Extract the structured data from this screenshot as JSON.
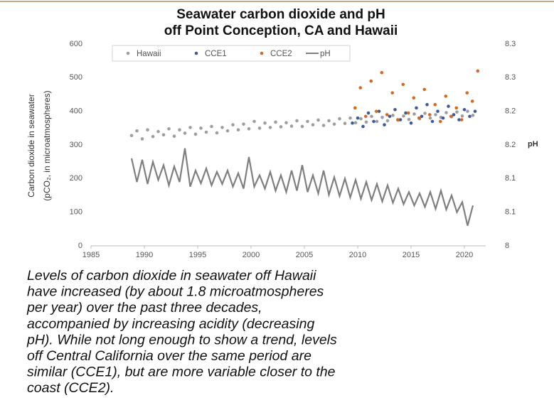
{
  "chart_data": {
    "type": "scatter",
    "title": [
      "Seawater carbon dioxide and pH",
      "off Point Conception, CA and Hawaii"
    ],
    "ylabel": [
      "Carbon dioxide in seawater",
      "(pCO₂, in microatmospheres)"
    ],
    "y2label": "pH",
    "xlim": [
      1985,
      2022
    ],
    "xticks": [
      1985,
      1990,
      1995,
      2000,
      2005,
      2010,
      2015,
      2020
    ],
    "ylim": [
      0,
      600
    ],
    "yticks": [
      0,
      100,
      200,
      300,
      400,
      500,
      600
    ],
    "y2lim": [
      8.0,
      8.3
    ],
    "y2ticks": [
      8.0,
      {
        "value": 8.05,
        "label": "8.1"
      },
      8.1,
      {
        "value": 8.15,
        "label": "8.2"
      },
      8.2,
      {
        "value": 8.25,
        "label": "8.3"
      },
      8.3
    ],
    "grid": false,
    "legend": "top",
    "series": [
      {
        "name": "Hawaii",
        "type": "scatter",
        "color": "#9e9e9e",
        "x": [
          1988.8,
          1989.3,
          1989.8,
          1990.3,
          1990.8,
          1991.3,
          1991.8,
          1992.3,
          1992.8,
          1993.3,
          1993.8,
          1994.3,
          1994.8,
          1995.3,
          1995.8,
          1996.3,
          1996.8,
          1997.3,
          1997.8,
          1998.3,
          1998.8,
          1999.3,
          1999.8,
          2000.3,
          2000.8,
          2001.3,
          2001.8,
          2002.3,
          2002.8,
          2003.3,
          2003.8,
          2004.3,
          2004.8,
          2005.3,
          2005.8,
          2006.3,
          2006.8,
          2007.3,
          2007.8,
          2008.3,
          2008.8,
          2009.3,
          2009.8,
          2010.3,
          2010.8,
          2011.3,
          2011.8,
          2012.3,
          2012.8,
          2013.3,
          2013.8,
          2014.3,
          2014.8,
          2015.3,
          2015.8,
          2016.3,
          2016.8,
          2017.3,
          2017.8,
          2018.3,
          2018.8,
          2019.3,
          2019.8,
          2020.3,
          2020.8
        ],
        "values": [
          328,
          342,
          318,
          345,
          325,
          340,
          330,
          348,
          326,
          345,
          335,
          352,
          332,
          350,
          338,
          355,
          336,
          352,
          342,
          360,
          345,
          362,
          348,
          370,
          350,
          365,
          352,
          368,
          354,
          366,
          356,
          372,
          355,
          370,
          360,
          374,
          358,
          372,
          362,
          378,
          364,
          380,
          366,
          378,
          368,
          385,
          370,
          382,
          372,
          388,
          374,
          386,
          376,
          392,
          378,
          394,
          380,
          390,
          382,
          396,
          384,
          398,
          386,
          400,
          388
        ]
      },
      {
        "name": "CCE1",
        "type": "scatter",
        "color": "#3b5b9e",
        "x": [
          2009.5,
          2010,
          2010.5,
          2011,
          2011.5,
          2012,
          2012.5,
          2013,
          2013.5,
          2014,
          2014.5,
          2015,
          2015.5,
          2016,
          2016.5,
          2017,
          2017.5,
          2018,
          2018.5,
          2019,
          2019.5,
          2020,
          2020.5,
          2021
        ],
        "values": [
          365,
          380,
          355,
          395,
          370,
          400,
          360,
          385,
          405,
          375,
          395,
          365,
          410,
          385,
          420,
          370,
          400,
          380,
          415,
          390,
          375,
          405,
          385,
          400
        ]
      },
      {
        "name": "CCE2",
        "type": "scatter",
        "color": "#d4691f",
        "x": [
          2009.75,
          2010.25,
          2010.75,
          2011.25,
          2011.75,
          2012.25,
          2012.75,
          2013.25,
          2013.75,
          2014.25,
          2014.75,
          2015.25,
          2015.75,
          2016.25,
          2016.75,
          2017.25,
          2017.75,
          2018.25,
          2018.75,
          2019.25,
          2019.75,
          2020.25,
          2020.75,
          2021.25
        ],
        "values": [
          410,
          470,
          385,
          490,
          400,
          515,
          390,
          455,
          375,
          480,
          395,
          440,
          380,
          465,
          390,
          420,
          370,
          445,
          385,
          410,
          375,
          455,
          430,
          520
        ]
      },
      {
        "name": "pH",
        "type": "line",
        "axis": "y2",
        "color": "#7f7f7f",
        "x": [
          1988.8,
          1989.3,
          1989.8,
          1990.3,
          1990.8,
          1991.3,
          1991.8,
          1992.3,
          1992.8,
          1993.3,
          1993.8,
          1994.3,
          1994.8,
          1995.3,
          1995.8,
          1996.3,
          1996.8,
          1997.3,
          1997.8,
          1998.3,
          1998.8,
          1999.3,
          1999.8,
          2000.3,
          2000.8,
          2001.3,
          2001.8,
          2002.3,
          2002.8,
          2003.3,
          2003.8,
          2004.3,
          2004.8,
          2005.3,
          2005.8,
          2006.3,
          2006.8,
          2007.3,
          2007.8,
          2008.3,
          2008.8,
          2009.3,
          2009.8,
          2010.3,
          2010.8,
          2011.3,
          2011.8,
          2012.3,
          2012.8,
          2013.3,
          2013.8,
          2014.3,
          2014.8,
          2015.3,
          2015.8,
          2016.3,
          2016.8,
          2017.3,
          2017.8,
          2018.3,
          2018.8,
          2019.3,
          2019.8,
          2020.3,
          2020.8
        ],
        "values": [
          8.13,
          8.095,
          8.128,
          8.092,
          8.125,
          8.098,
          8.12,
          8.09,
          8.118,
          8.095,
          8.145,
          8.088,
          8.112,
          8.093,
          8.115,
          8.09,
          8.11,
          8.092,
          8.112,
          8.088,
          8.108,
          8.085,
          8.132,
          8.088,
          8.105,
          8.085,
          8.11,
          8.082,
          8.105,
          8.08,
          8.112,
          8.082,
          8.12,
          8.08,
          8.105,
          8.078,
          8.112,
          8.076,
          8.102,
          8.074,
          8.1,
          8.072,
          8.098,
          8.07,
          8.095,
          8.068,
          8.092,
          8.066,
          8.09,
          8.064,
          8.085,
          8.062,
          8.08,
          8.06,
          8.078,
          8.058,
          8.08,
          8.055,
          8.082,
          8.054,
          8.075,
          8.05,
          8.065,
          8.03,
          8.06
        ]
      }
    ]
  },
  "caption": [
    "Levels of carbon dioxide in seawater off Hawaii",
    "have increased (by about 1.8 microatmospheres",
    "per year) over the past three decades,",
    "accompanied by increasing acidity (decreasing",
    "pH). While not long enough to show a trend, levels",
    "off Central California over the same period are",
    "similar (CCE1), but are more variable closer to the",
    "coast (CCE2)."
  ]
}
